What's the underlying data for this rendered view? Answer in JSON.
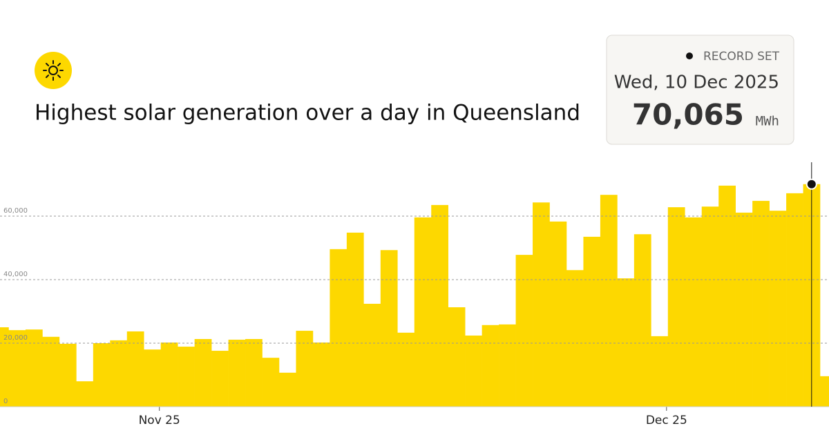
{
  "title": "Highest solar generation over a day in Queensland",
  "record": {
    "label": "RECORD SET",
    "date": "Wed, 10 Dec 2025",
    "value": "70,065",
    "unit": "MWh"
  },
  "chart_data": {
    "type": "bar",
    "color": "#fdd800",
    "categories": [
      null,
      null,
      null,
      null,
      null,
      null,
      null,
      null,
      null,
      null,
      "Nov 25",
      null,
      null,
      null,
      null,
      null,
      null,
      null,
      null,
      null,
      null,
      null,
      null,
      null,
      null,
      null,
      null,
      null,
      null,
      null,
      null,
      null,
      null,
      null,
      null,
      null,
      null,
      null,
      null,
      null,
      "Dec 25",
      null,
      null,
      null,
      null,
      null,
      null,
      null,
      null,
      null
    ],
    "values": [
      25000,
      24100,
      24300,
      22000,
      19800,
      8000,
      20000,
      20900,
      23700,
      18000,
      20200,
      18900,
      21300,
      17600,
      21100,
      21300,
      15400,
      10700,
      23900,
      20200,
      49600,
      54800,
      32400,
      49300,
      23300,
      59600,
      63500,
      31300,
      22400,
      25700,
      25900,
      47800,
      64300,
      58300,
      43000,
      53500,
      66700,
      40400,
      54300,
      22200,
      62800,
      59600,
      63000,
      69600,
      61100,
      64800,
      61700,
      67200,
      70065,
      9600
    ],
    "ylim": [
      0,
      75000
    ],
    "yticks": [
      0,
      {
        "value": 20000,
        "label": "20,000"
      },
      {
        "value": 40000,
        "label": "40,000"
      },
      {
        "value": 60000,
        "label": "60,000"
      }
    ],
    "grid": true
  }
}
